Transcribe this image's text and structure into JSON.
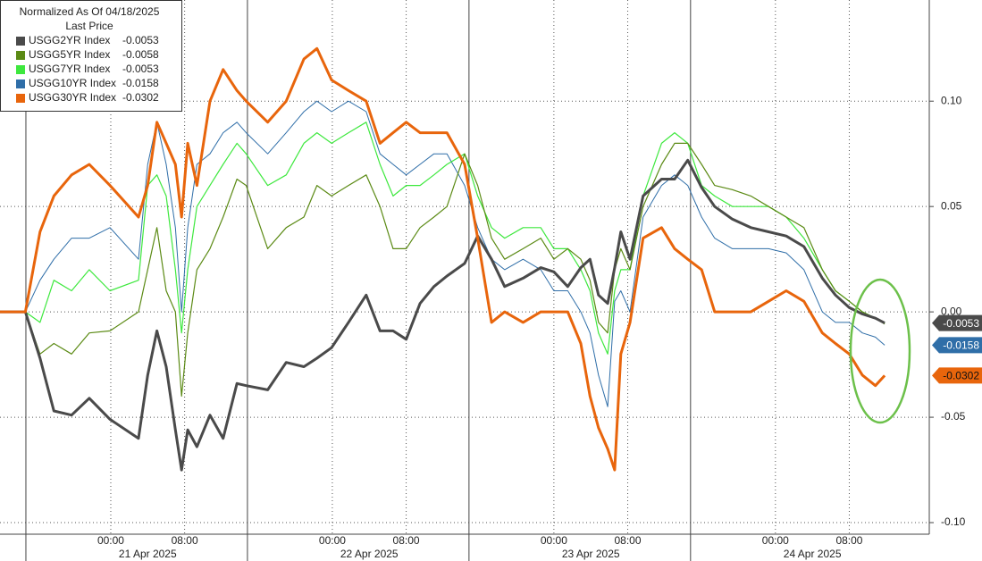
{
  "chart_data": {
    "type": "line",
    "legend_title": "Normalized As Of 04/18/2025",
    "legend_subtitle": "Last Price",
    "legend": "top-left",
    "grid": true,
    "x": [
      "2025-04-20 12:00",
      "2025-04-20 14:45",
      "2025-04-20 16:20",
      "2025-04-20 17:50",
      "2025-04-20 19:45",
      "2025-04-20 21:40",
      "2025-04-20 23:55",
      "2025-04-21 03:00",
      "2025-04-21 04:00",
      "2025-04-21 05:00",
      "2025-04-21 06:00",
      "2025-04-21 07:00",
      "2025-04-21 07:40",
      "2025-04-21 08:20",
      "2025-04-21 09:20",
      "2025-04-21 10:45",
      "2025-04-21 12:10",
      "2025-04-21 13:40",
      "2025-04-21 14:40",
      "2025-04-21 17:00",
      "2025-04-21 19:00",
      "2025-04-21 20:55",
      "2025-04-21 22:20",
      "2025-04-21 23:55",
      "2025-04-22 01:45",
      "2025-04-22 03:40",
      "2025-04-22 05:10",
      "2025-04-22 06:35",
      "2025-04-22 08:00",
      "2025-04-22 09:30",
      "2025-04-22 11:00",
      "2025-04-22 12:25",
      "2025-04-22 14:20",
      "2025-04-22 15:45",
      "2025-04-22 17:15",
      "2025-04-22 18:40",
      "2025-04-22 20:40",
      "2025-04-22 22:35",
      "2025-04-23 00:00",
      "2025-04-23 01:30",
      "2025-04-23 02:55",
      "2025-04-23 03:55",
      "2025-04-23 04:50",
      "2025-04-23 05:50",
      "2025-04-23 06:35",
      "2025-04-23 07:15",
      "2025-04-23 08:15",
      "2025-04-23 09:40",
      "2025-04-23 11:40",
      "2025-04-23 13:05",
      "2025-04-23 14:30",
      "2025-04-23 16:00",
      "2025-04-23 17:25",
      "2025-04-23 19:20",
      "2025-04-23 21:20",
      "2025-04-23 23:15",
      "2025-04-24 01:10",
      "2025-04-24 03:05",
      "2025-04-24 05:05",
      "2025-04-24 06:30",
      "2025-04-24 08:00",
      "2025-04-24 09:25",
      "2025-04-24 10:50",
      "2025-04-24 11:50"
    ],
    "xlim": [
      "2025-04-20 12:00",
      "2025-04-24 16:40"
    ],
    "xticks": [
      {
        "value": "2025-04-21 00:00",
        "label": "00:00"
      },
      {
        "value": "2025-04-21 08:00",
        "label": "08:00"
      },
      {
        "value": "2025-04-22 00:00",
        "label": "00:00"
      },
      {
        "value": "2025-04-22 08:00",
        "label": "08:00"
      },
      {
        "value": "2025-04-23 00:00",
        "label": "00:00"
      },
      {
        "value": "2025-04-23 08:00",
        "label": "08:00"
      },
      {
        "value": "2025-04-24 00:00",
        "label": "00:00"
      },
      {
        "value": "2025-04-24 08:00",
        "label": "08:00"
      }
    ],
    "dates": [
      "21 Apr 2025",
      "22 Apr 2025",
      "23 Apr 2025",
      "24 Apr 2025"
    ],
    "ylim": [
      -0.1055,
      0.148
    ],
    "yticks": [
      {
        "value": 0.1,
        "label": "0.10"
      },
      0.05,
      {
        "value": 0,
        "label": "0.00"
      },
      -0.05,
      {
        "value": -0.1,
        "label": "-0.10"
      }
    ],
    "series": [
      {
        "name": "USGG2YR Index",
        "last": -0.0053,
        "tag": true,
        "color": "#4a4a4a",
        "values": [
          0,
          0,
          -0.022,
          -0.047,
          -0.049,
          -0.041,
          -0.051,
          -0.06,
          -0.03,
          -0.009,
          -0.026,
          -0.056,
          -0.075,
          -0.056,
          -0.064,
          -0.049,
          -0.06,
          -0.034,
          -0.035,
          -0.037,
          -0.024,
          -0.026,
          -0.022,
          -0.017,
          -0.005,
          0.008,
          -0.009,
          -0.009,
          -0.013,
          0.004,
          0.012,
          0.017,
          0.023,
          0.036,
          0.025,
          0.012,
          0.016,
          0.021,
          0.019,
          0.012,
          0.021,
          0.025,
          0.008,
          0.004,
          0.021,
          0.038,
          0.025,
          0.055,
          0.063,
          0.063,
          0.072,
          0.059,
          0.05,
          0.044,
          0.04,
          0.038,
          0.036,
          0.031,
          0.016,
          0.008,
          0.002,
          -0.001,
          -0.003,
          -0.0053
        ]
      },
      {
        "name": "USGG5YR Index",
        "last": -0.0058,
        "tag": false,
        "color": "#5b8a14",
        "values": [
          0,
          0,
          -0.02,
          -0.015,
          -0.02,
          -0.01,
          -0.009,
          0.0,
          0.02,
          0.04,
          0.01,
          0.0,
          -0.04,
          -0.01,
          0.02,
          0.03,
          0.045,
          0.063,
          0.06,
          0.03,
          0.04,
          0.045,
          0.06,
          0.055,
          0.06,
          0.065,
          0.05,
          0.03,
          0.03,
          0.04,
          0.045,
          0.05,
          0.075,
          0.06,
          0.035,
          0.025,
          0.03,
          0.035,
          0.025,
          0.03,
          0.025,
          0.015,
          -0.005,
          -0.01,
          0.02,
          0.03,
          0.02,
          0.05,
          0.07,
          0.08,
          0.08,
          0.07,
          0.06,
          0.058,
          0.055,
          0.05,
          0.045,
          0.04,
          0.02,
          0.01,
          0.005,
          0.0,
          -0.003,
          -0.0058
        ]
      },
      {
        "name": "USGG7YR Index",
        "last": -0.0053,
        "tag": false,
        "color": "#3ee83e",
        "values": [
          0,
          0,
          -0.005,
          0.015,
          0.01,
          0.02,
          0.01,
          0.015,
          0.06,
          0.065,
          0.055,
          0.02,
          -0.01,
          0.02,
          0.05,
          0.06,
          0.07,
          0.08,
          0.075,
          0.06,
          0.065,
          0.08,
          0.085,
          0.08,
          0.085,
          0.09,
          0.07,
          0.055,
          0.06,
          0.06,
          0.065,
          0.07,
          0.075,
          0.055,
          0.04,
          0.035,
          0.04,
          0.04,
          0.03,
          0.03,
          0.02,
          0.01,
          -0.01,
          -0.02,
          0.01,
          0.02,
          0.02,
          0.055,
          0.08,
          0.085,
          0.08,
          0.06,
          0.055,
          0.05,
          0.05,
          0.05,
          0.045,
          0.035,
          0.02,
          0.01,
          0.005,
          0.0,
          -0.003,
          -0.0053
        ]
      },
      {
        "name": "USGG10YR Index",
        "last": -0.0158,
        "tag": true,
        "color": "#2f6ea8",
        "values": [
          0,
          0,
          0.015,
          0.025,
          0.035,
          0.035,
          0.04,
          0.025,
          0.07,
          0.09,
          0.07,
          0.04,
          0.0,
          0.04,
          0.07,
          0.075,
          0.085,
          0.09,
          0.085,
          0.075,
          0.085,
          0.095,
          0.1,
          0.095,
          0.1,
          0.095,
          0.075,
          0.07,
          0.065,
          0.07,
          0.075,
          0.075,
          0.06,
          0.04,
          0.025,
          0.02,
          0.025,
          0.02,
          0.01,
          0.01,
          0.0,
          -0.01,
          -0.03,
          -0.045,
          0.005,
          0.01,
          0.0,
          0.045,
          0.06,
          0.065,
          0.06,
          0.045,
          0.035,
          0.03,
          0.03,
          0.03,
          0.028,
          0.02,
          0.0,
          -0.005,
          -0.005,
          -0.01,
          -0.012,
          -0.0158
        ]
      },
      {
        "name": "USGG30YR Index",
        "last": -0.0302,
        "tag": true,
        "color": "#e8650c",
        "values": [
          0,
          0,
          0.038,
          0.055,
          0.065,
          0.07,
          0.06,
          0.045,
          0.06,
          0.09,
          0.08,
          0.07,
          0.045,
          0.08,
          0.06,
          0.1,
          0.115,
          0.105,
          0.1,
          0.09,
          0.1,
          0.12,
          0.125,
          0.11,
          0.105,
          0.1,
          0.08,
          0.085,
          0.09,
          0.085,
          0.085,
          0.085,
          0.07,
          0.035,
          -0.005,
          0.0,
          -0.005,
          0.0,
          0.0,
          0.0,
          -0.015,
          -0.04,
          -0.055,
          -0.065,
          -0.075,
          -0.02,
          -0.005,
          0.035,
          0.04,
          0.03,
          0.025,
          0.02,
          0.0,
          0.0,
          0.0,
          0.005,
          0.01,
          0.005,
          -0.01,
          -0.015,
          -0.02,
          -0.03,
          -0.035,
          -0.0302
        ]
      }
    ]
  }
}
